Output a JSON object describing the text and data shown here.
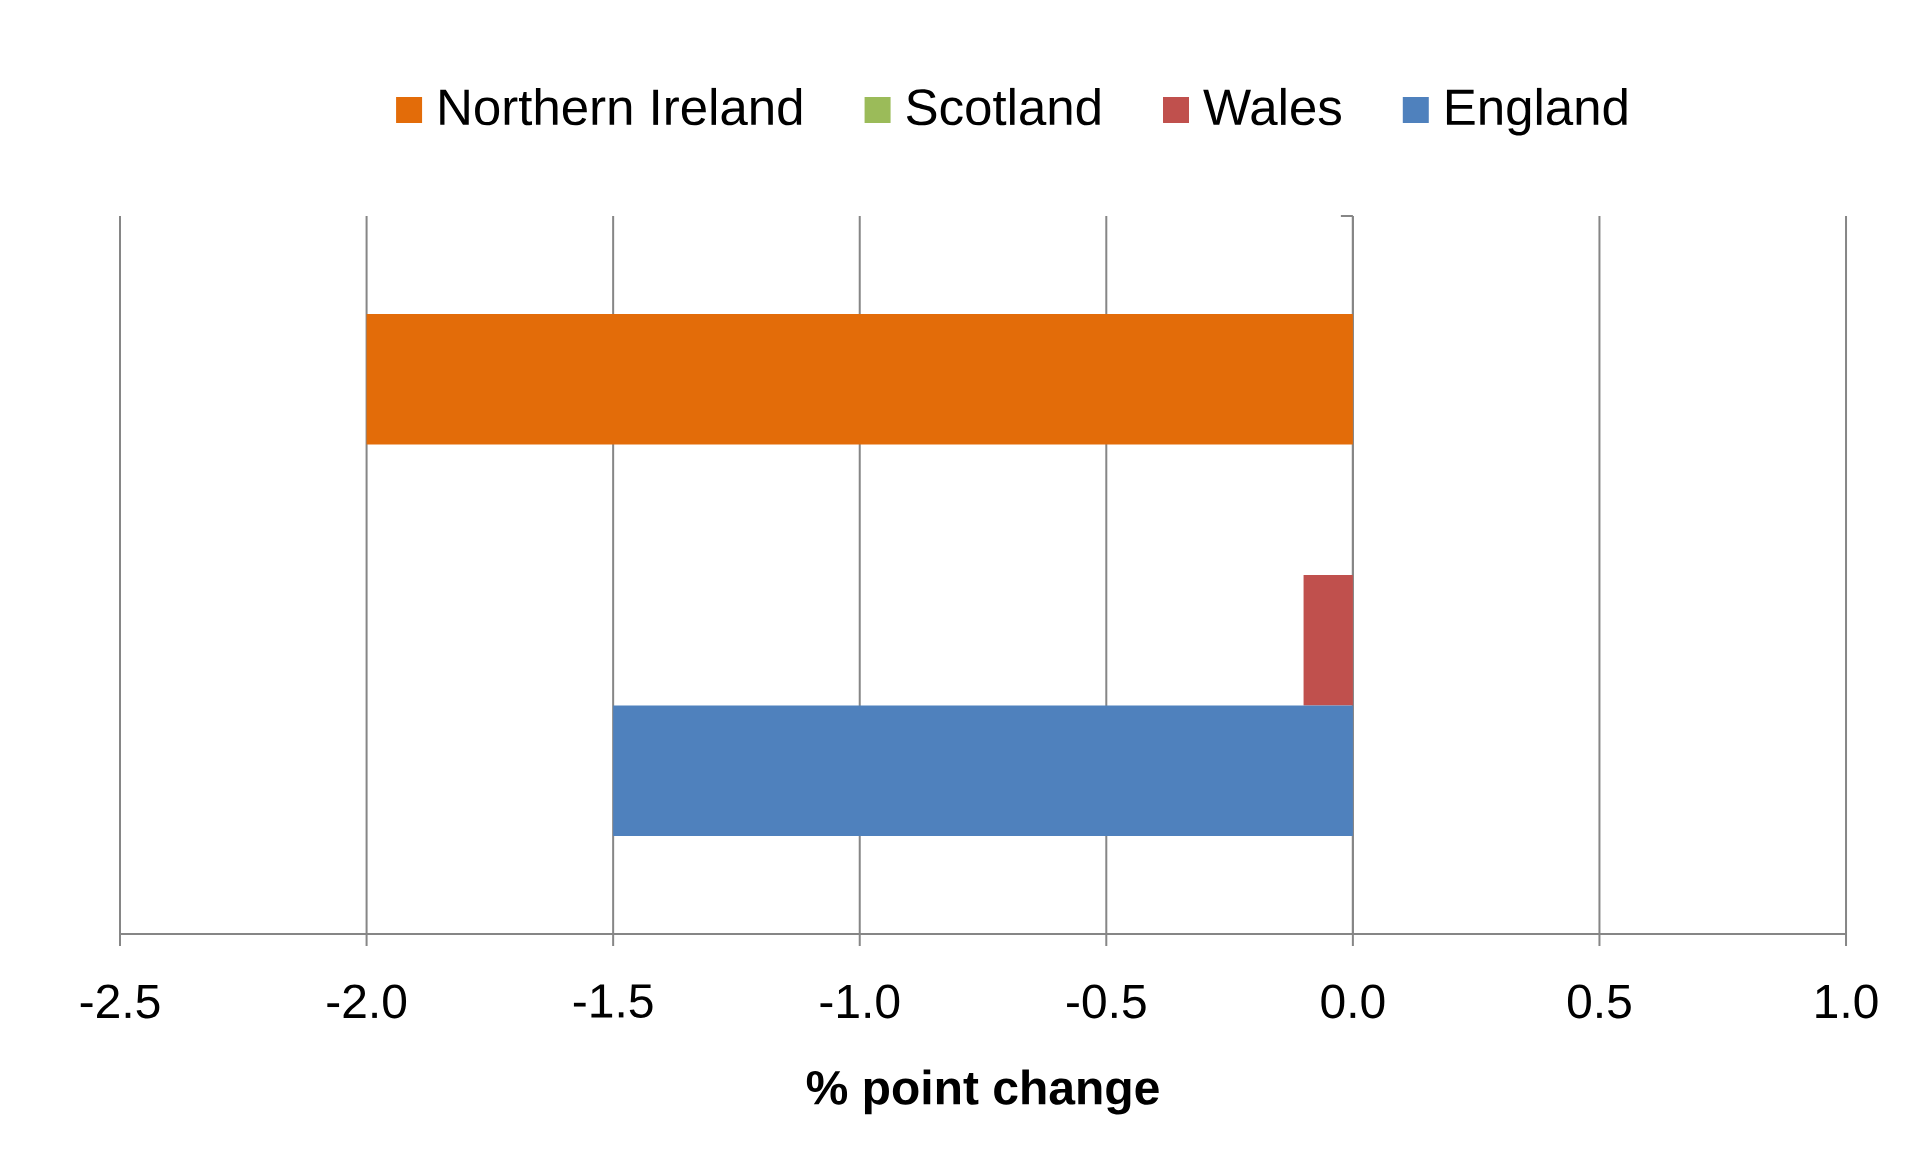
{
  "chart_data": {
    "type": "bar",
    "orientation": "horizontal",
    "categories": [
      null
    ],
    "series": [
      {
        "name": "Northern Ireland",
        "color": "#e36c09",
        "values": [
          -2.0
        ]
      },
      {
        "name": "Scotland",
        "color": "#9bbb59",
        "values": [
          0
        ]
      },
      {
        "name": "Wales",
        "color": "#c0504d",
        "values": [
          -0.1
        ]
      },
      {
        "name": "England",
        "color": "#4f81bd",
        "values": [
          -1.5
        ]
      }
    ],
    "xlabel": "% point change",
    "xlim": [
      -2.5,
      1.0
    ],
    "xticks": [
      -2.5,
      {
        "value": -2,
        "label": "-2.0"
      },
      -1.5,
      {
        "value": -1,
        "label": "-1.0"
      },
      -0.5,
      {
        "value": 0,
        "label": "0.0"
      },
      0.5,
      {
        "value": 1,
        "label": "1.0"
      }
    ],
    "grid": "x",
    "legend": "top"
  }
}
